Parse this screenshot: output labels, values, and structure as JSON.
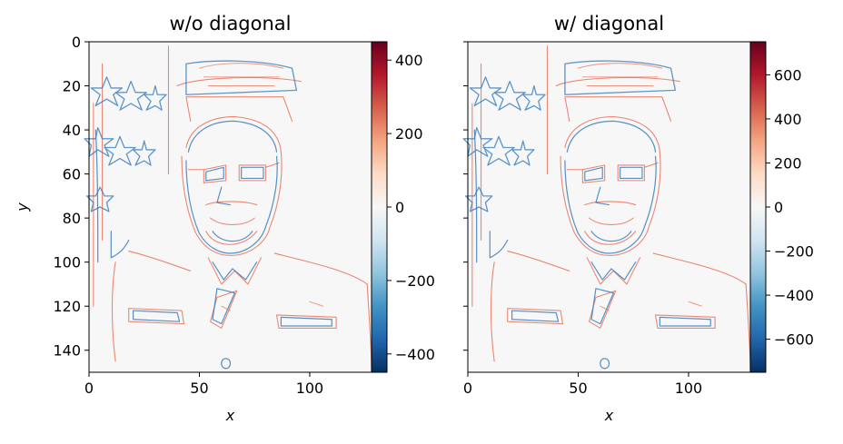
{
  "chart_data": [
    {
      "type": "heatmap",
      "title": "w/o diagonal",
      "xlabel": "x",
      "ylabel": "y",
      "xlim": [
        0,
        128
      ],
      "ylim": [
        150,
        0
      ],
      "xticks": [
        0,
        50,
        100
      ],
      "yticks": [
        0,
        20,
        40,
        60,
        80,
        100,
        120,
        140
      ],
      "colormap": "RdBu_r",
      "colorbar": {
        "vmin": -450,
        "vmax": 450,
        "ticks": [
          400,
          200,
          0,
          -200,
          -400
        ],
        "tick_labels": [
          "400",
          "200",
          "0",
          "−200",
          "−400"
        ]
      }
    },
    {
      "type": "heatmap",
      "title": "w/ diagonal",
      "xlabel": "x",
      "ylabel": "",
      "xlim": [
        0,
        128
      ],
      "ylim": [
        150,
        0
      ],
      "xticks": [
        0,
        50,
        100
      ],
      "yticks": [
        0,
        20,
        40,
        60,
        80,
        100,
        120,
        140
      ],
      "colormap": "RdBu_r",
      "colorbar": {
        "vmin": -750,
        "vmax": 750,
        "ticks": [
          600,
          400,
          200,
          0,
          -200,
          -400,
          -600
        ],
        "tick_labels": [
          "600",
          "400",
          "200",
          "0",
          "−200",
          "−400",
          "−600"
        ]
      }
    }
  ],
  "colors": {
    "background": "#f7f7f7",
    "positive": "#e8735a",
    "negative": "#3a7fbf",
    "deep_red": "#67001f",
    "deep_blue": "#053061"
  }
}
